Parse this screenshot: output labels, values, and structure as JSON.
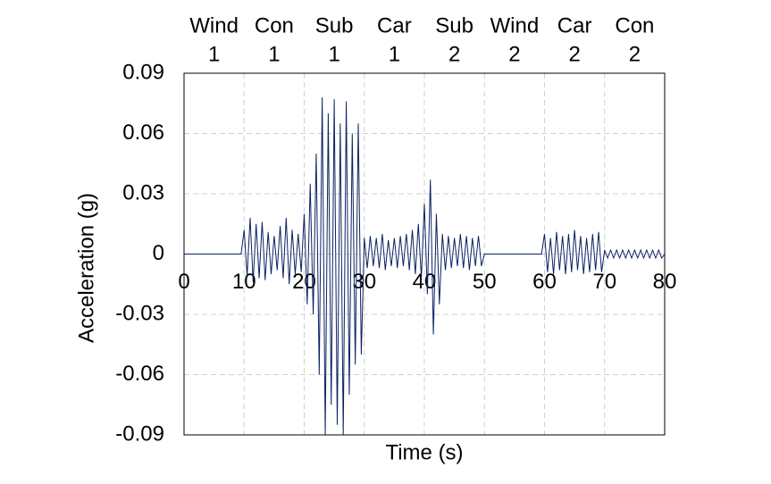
{
  "chart_data": {
    "type": "line",
    "y_label": "Acceleration (g)",
    "x_label": "Time (s)",
    "segments": [
      [
        "Wind",
        "1"
      ],
      [
        "Con",
        "1"
      ],
      [
        "Sub",
        "1"
      ],
      [
        "Car",
        "1"
      ],
      [
        "Sub",
        "2"
      ],
      [
        "Wind",
        "2"
      ],
      [
        "Car",
        "2"
      ],
      [
        "Con",
        "2"
      ]
    ],
    "xlim": [
      0,
      80
    ],
    "xticks": [
      0,
      10,
      20,
      30,
      40,
      50,
      60,
      70,
      80
    ],
    "ylim": [
      -0.09,
      0.09
    ],
    "yticks": [
      0.09,
      0.06,
      0.03,
      0,
      -0.03,
      -0.06,
      -0.09
    ],
    "grid": true,
    "x": [
      0,
      0.5,
      1,
      1.5,
      2,
      2.5,
      3,
      3.5,
      4,
      4.5,
      5,
      5.5,
      6,
      6.5,
      7,
      7.5,
      8,
      8.5,
      9,
      9.5,
      10,
      10.5,
      11,
      11.5,
      12,
      12.5,
      13,
      13.5,
      14,
      14.5,
      15,
      15.5,
      16,
      16.5,
      17,
      17.5,
      18,
      18.5,
      19,
      19.5,
      20,
      20.5,
      21,
      21.5,
      22,
      22.5,
      23,
      23.5,
      24,
      24.5,
      25,
      25.5,
      26,
      26.5,
      27,
      27.5,
      28,
      28.5,
      29,
      29.5,
      30,
      30.5,
      31,
      31.5,
      32,
      32.5,
      33,
      33.5,
      34,
      34.5,
      35,
      35.5,
      36,
      36.5,
      37,
      37.5,
      38,
      38.5,
      39,
      39.5,
      40,
      40.5,
      41,
      41.5,
      42,
      42.5,
      43,
      43.5,
      44,
      44.5,
      45,
      45.5,
      46,
      46.5,
      47,
      47.5,
      48,
      48.5,
      49,
      49.5,
      50,
      50.5,
      51,
      51.5,
      52,
      52.5,
      53,
      53.5,
      54,
      54.5,
      55,
      55.5,
      56,
      56.5,
      57,
      57.5,
      58,
      58.5,
      59,
      59.5,
      60,
      60.5,
      61,
      61.5,
      62,
      62.5,
      63,
      63.5,
      64,
      64.5,
      65,
      65.5,
      66,
      66.5,
      67,
      67.5,
      68,
      68.5,
      69,
      69.5,
      70,
      70.5,
      71,
      71.5,
      72,
      72.5,
      73,
      73.5,
      74,
      74.5,
      75,
      75.5,
      76,
      76.5,
      77,
      77.5,
      78,
      78.5,
      79,
      79.5,
      80
    ],
    "series": [
      {
        "color": "#0a2163",
        "values": [
          0,
          0,
          0,
          0,
          0,
          0,
          0,
          0,
          0,
          0,
          0,
          0,
          0,
          0,
          0,
          0,
          0,
          0,
          0,
          0,
          0.012,
          -0.011,
          0.018,
          -0.014,
          0.015,
          -0.012,
          0.016,
          -0.013,
          0.011,
          -0.01,
          0.009,
          -0.008,
          0.014,
          -0.012,
          0.018,
          -0.015,
          0.012,
          -0.01,
          0.01,
          -0.009,
          0.02,
          -0.025,
          0.035,
          -0.03,
          0.05,
          -0.06,
          0.078,
          -0.09,
          0.07,
          -0.075,
          0.077,
          -0.085,
          0.065,
          -0.09,
          0.076,
          -0.07,
          0.06,
          -0.055,
          0.065,
          -0.05,
          0.008,
          -0.007,
          0.009,
          -0.006,
          0.008,
          -0.007,
          0.01,
          -0.008,
          0.007,
          -0.006,
          0.008,
          -0.007,
          0.009,
          -0.006,
          0.01,
          -0.008,
          0.012,
          -0.01,
          0.015,
          -0.012,
          0.025,
          -0.02,
          0.037,
          -0.04,
          0.02,
          -0.025,
          0.01,
          -0.008,
          0.009,
          -0.007,
          0.008,
          -0.006,
          0.01,
          -0.007,
          0.009,
          -0.008,
          0.008,
          -0.006,
          0.009,
          -0.006,
          0,
          0,
          0,
          0,
          0,
          0,
          0,
          0,
          0,
          0,
          0,
          0,
          0,
          0,
          0,
          0,
          0,
          0,
          0,
          0,
          0.01,
          -0.009,
          0.008,
          -0.01,
          0.011,
          -0.008,
          0.009,
          -0.01,
          0.01,
          -0.009,
          0.012,
          -0.008,
          0.009,
          -0.01,
          0.008,
          -0.009,
          0.01,
          -0.008,
          0.011,
          -0.009,
          0.002,
          -0.002,
          0.002,
          -0.002,
          0.002,
          -0.002,
          0.002,
          -0.002,
          0.002,
          -0.002,
          0.002,
          -0.002,
          0.002,
          -0.002,
          0.002,
          -0.002,
          0.002,
          -0.002,
          0.002,
          -0.002,
          0
        ]
      }
    ]
  }
}
